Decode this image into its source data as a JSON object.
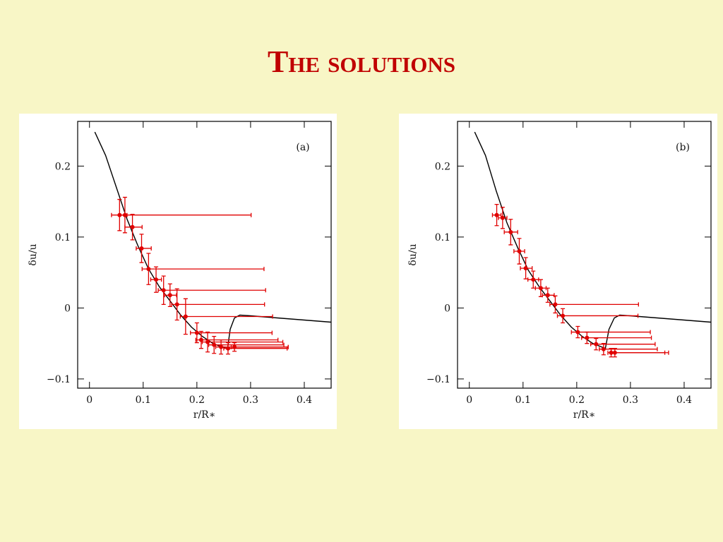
{
  "title": "The solutions",
  "chart_data": [
    {
      "type": "scatter",
      "annotation": "(a)",
      "xlabel": "r/R∗",
      "ylabel": "δu/u",
      "xlim": [
        -0.022,
        0.45
      ],
      "ylim": [
        -0.113,
        0.263
      ],
      "xticks": [
        0,
        0.1,
        0.2,
        0.3,
        0.4
      ],
      "yticks": [
        {
          "value": -0.1,
          "label": "−0.1"
        },
        0,
        0.1,
        0.2
      ],
      "curve": {
        "color": "#000000",
        "x": [
          0.01,
          0.03,
          0.05,
          0.07,
          0.09,
          0.11,
          0.13,
          0.15,
          0.17,
          0.19,
          0.21,
          0.23,
          0.25,
          0.26,
          null,
          0.257,
          0.262,
          0.27,
          0.28,
          0.3,
          0.35,
          0.4,
          0.45
        ],
        "values": [
          0.248,
          0.215,
          0.17,
          0.125,
          0.088,
          0.055,
          0.03,
          0.01,
          -0.01,
          -0.027,
          -0.04,
          -0.05,
          -0.056,
          -0.058,
          null,
          -0.058,
          -0.03,
          -0.014,
          -0.01,
          -0.011,
          -0.014,
          -0.017,
          -0.02
        ]
      },
      "points": {
        "color": "#e00000",
        "x": [
          0.056,
          0.066,
          0.08,
          0.097,
          0.11,
          0.124,
          0.138,
          0.15,
          0.163,
          0.179,
          0.2,
          0.208,
          0.22,
          0.232,
          0.245,
          0.258,
          0.27
        ],
        "values": [
          0.131,
          0.131,
          0.114,
          0.084,
          0.055,
          0.04,
          0.025,
          0.018,
          0.005,
          -0.012,
          -0.035,
          -0.045,
          -0.048,
          -0.052,
          -0.055,
          -0.057,
          -0.055
        ],
        "xerr_low": [
          0.015,
          0.01,
          0.014,
          0.01,
          0.012,
          0.01,
          0.01,
          0.01,
          0.01,
          0.01,
          0.012,
          0.01,
          0.01,
          0.01,
          0.01,
          0.008,
          0.006
        ],
        "xerr_high": [
          0.014,
          0.235,
          0.018,
          0.018,
          0.215,
          0.01,
          0.19,
          0.012,
          0.163,
          0.162,
          0.14,
          0.143,
          0.14,
          0.13,
          0.125,
          0.11,
          0.1
        ],
        "yerr": [
          0.022,
          0.025,
          0.018,
          0.02,
          0.022,
          0.018,
          0.02,
          0.016,
          0.022,
          0.025,
          0.014,
          0.012,
          0.014,
          0.012,
          0.01,
          0.008,
          0.006
        ]
      }
    },
    {
      "type": "scatter",
      "annotation": "(b)",
      "xlabel": "r/R∗",
      "ylabel": "δu/u",
      "xlim": [
        -0.022,
        0.45
      ],
      "ylim": [
        -0.113,
        0.263
      ],
      "xticks": [
        0,
        0.1,
        0.2,
        0.3,
        0.4
      ],
      "yticks": [
        {
          "value": -0.1,
          "label": "−0.1"
        },
        0,
        0.1,
        0.2
      ],
      "curve": {
        "color": "#000000",
        "x": [
          0.01,
          0.03,
          0.05,
          0.07,
          0.09,
          0.11,
          0.13,
          0.15,
          0.17,
          0.19,
          0.21,
          0.23,
          0.25,
          0.255,
          null,
          0.253,
          0.26,
          0.27,
          0.28,
          0.3,
          0.35,
          0.4,
          0.45
        ],
        "values": [
          0.248,
          0.215,
          0.165,
          0.12,
          0.085,
          0.053,
          0.03,
          0.01,
          -0.01,
          -0.027,
          -0.04,
          -0.05,
          -0.056,
          -0.058,
          null,
          -0.058,
          -0.03,
          -0.014,
          -0.01,
          -0.011,
          -0.014,
          -0.017,
          -0.02
        ]
      },
      "points": {
        "color": "#e00000",
        "x": [
          0.051,
          0.062,
          0.077,
          0.093,
          0.105,
          0.119,
          0.133,
          0.146,
          0.16,
          0.174,
          0.202,
          0.219,
          0.236,
          0.25,
          0.264,
          0.271
        ],
        "values": [
          0.131,
          0.127,
          0.107,
          0.08,
          0.056,
          0.04,
          0.028,
          0.018,
          0.005,
          -0.011,
          -0.034,
          -0.042,
          -0.051,
          -0.058,
          -0.063,
          -0.063
        ],
        "xerr_low": [
          0.008,
          0.008,
          0.012,
          0.01,
          0.01,
          0.01,
          0.01,
          0.01,
          0.01,
          0.01,
          0.012,
          0.01,
          0.01,
          0.008,
          0.006,
          0.006
        ],
        "xerr_high": [
          0.008,
          0.008,
          0.013,
          0.01,
          0.012,
          0.01,
          0.01,
          0.012,
          0.155,
          0.14,
          0.135,
          0.12,
          0.11,
          0.1,
          0.1,
          0.1
        ],
        "yerr": [
          0.015,
          0.015,
          0.018,
          0.018,
          0.015,
          0.012,
          0.012,
          0.01,
          0.012,
          0.01,
          0.008,
          0.008,
          0.008,
          0.008,
          0.006,
          0.006
        ]
      }
    }
  ]
}
